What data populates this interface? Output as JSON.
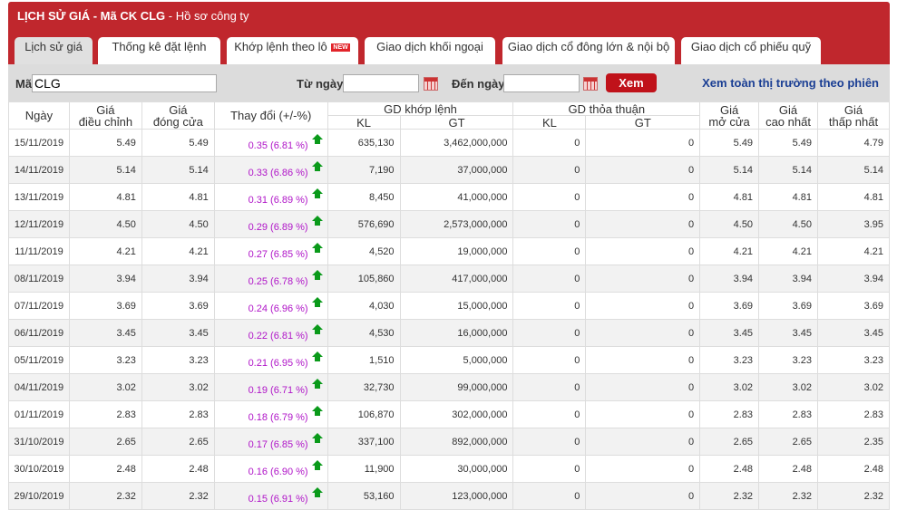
{
  "header": {
    "title_bold": "LỊCH SỬ GIÁ - Mã CK CLG",
    "title_rest": " - Hồ sơ công ty"
  },
  "tabs": [
    {
      "label": "Lịch sử giá",
      "active": true
    },
    {
      "label": "Thống kê đặt lệnh"
    },
    {
      "label": "Khớp lệnh theo lô",
      "badge": "NEW"
    },
    {
      "label": "Giao dịch khối ngoại"
    },
    {
      "label": "Giao dịch cổ đông lớn & nội bộ"
    },
    {
      "label": "Giao dịch cổ phiếu quỹ"
    }
  ],
  "filter": {
    "code_label": "Mã",
    "code_value": "CLG",
    "from_label": "Từ ngày",
    "from_value": "",
    "to_label": "Đến ngày",
    "to_value": "",
    "submit": "Xem",
    "market_link": "Xem toàn thị trường theo phiên"
  },
  "table": {
    "headers": {
      "date": "Ngày",
      "adj_top": "Giá",
      "adj_bottom": "điều chỉnh",
      "close_top": "Giá",
      "close_bottom": "đóng cửa",
      "change": "Thay đổi (+/-%)",
      "matched": "GD khớp lệnh",
      "negotiated": "GD thỏa thuận",
      "kl": "KL",
      "gt": "GT",
      "open_top": "Giá",
      "open_bottom": "mở cửa",
      "high_top": "Giá",
      "high_bottom": "cao nhất",
      "low_top": "Giá",
      "low_bottom": "thấp nhất"
    },
    "rows": [
      [
        "15/11/2019",
        "5.49",
        "5.49",
        "0.35 (6.81 %)",
        "635,130",
        "3,462,000,000",
        "0",
        "0",
        "5.49",
        "5.49",
        "4.79"
      ],
      [
        "14/11/2019",
        "5.14",
        "5.14",
        "0.33 (6.86 %)",
        "7,190",
        "37,000,000",
        "0",
        "0",
        "5.14",
        "5.14",
        "5.14"
      ],
      [
        "13/11/2019",
        "4.81",
        "4.81",
        "0.31 (6.89 %)",
        "8,450",
        "41,000,000",
        "0",
        "0",
        "4.81",
        "4.81",
        "4.81"
      ],
      [
        "12/11/2019",
        "4.50",
        "4.50",
        "0.29 (6.89 %)",
        "576,690",
        "2,573,000,000",
        "0",
        "0",
        "4.50",
        "4.50",
        "3.95"
      ],
      [
        "11/11/2019",
        "4.21",
        "4.21",
        "0.27 (6.85 %)",
        "4,520",
        "19,000,000",
        "0",
        "0",
        "4.21",
        "4.21",
        "4.21"
      ],
      [
        "08/11/2019",
        "3.94",
        "3.94",
        "0.25 (6.78 %)",
        "105,860",
        "417,000,000",
        "0",
        "0",
        "3.94",
        "3.94",
        "3.94"
      ],
      [
        "07/11/2019",
        "3.69",
        "3.69",
        "0.24 (6.96 %)",
        "4,030",
        "15,000,000",
        "0",
        "0",
        "3.69",
        "3.69",
        "3.69"
      ],
      [
        "06/11/2019",
        "3.45",
        "3.45",
        "0.22 (6.81 %)",
        "4,530",
        "16,000,000",
        "0",
        "0",
        "3.45",
        "3.45",
        "3.45"
      ],
      [
        "05/11/2019",
        "3.23",
        "3.23",
        "0.21 (6.95 %)",
        "1,510",
        "5,000,000",
        "0",
        "0",
        "3.23",
        "3.23",
        "3.23"
      ],
      [
        "04/11/2019",
        "3.02",
        "3.02",
        "0.19 (6.71 %)",
        "32,730",
        "99,000,000",
        "0",
        "0",
        "3.02",
        "3.02",
        "3.02"
      ],
      [
        "01/11/2019",
        "2.83",
        "2.83",
        "0.18 (6.79 %)",
        "106,870",
        "302,000,000",
        "0",
        "0",
        "2.83",
        "2.83",
        "2.83"
      ],
      [
        "31/10/2019",
        "2.65",
        "2.65",
        "0.17 (6.85 %)",
        "337,100",
        "892,000,000",
        "0",
        "0",
        "2.65",
        "2.65",
        "2.35"
      ],
      [
        "30/10/2019",
        "2.48",
        "2.48",
        "0.16 (6.90 %)",
        "11,900",
        "30,000,000",
        "0",
        "0",
        "2.48",
        "2.48",
        "2.48"
      ],
      [
        "29/10/2019",
        "2.32",
        "2.32",
        "0.15 (6.91 %)",
        "53,160",
        "123,000,000",
        "0",
        "0",
        "2.32",
        "2.32",
        "2.32"
      ]
    ]
  },
  "colors": {
    "brand": "#c0272d",
    "change_text": "#b015c8",
    "up_arrow": "#0a9a1a",
    "link": "#1b3f94"
  },
  "icons": {
    "change_direction": "arrow-up-icon",
    "date_picker": "calendar-icon"
  }
}
